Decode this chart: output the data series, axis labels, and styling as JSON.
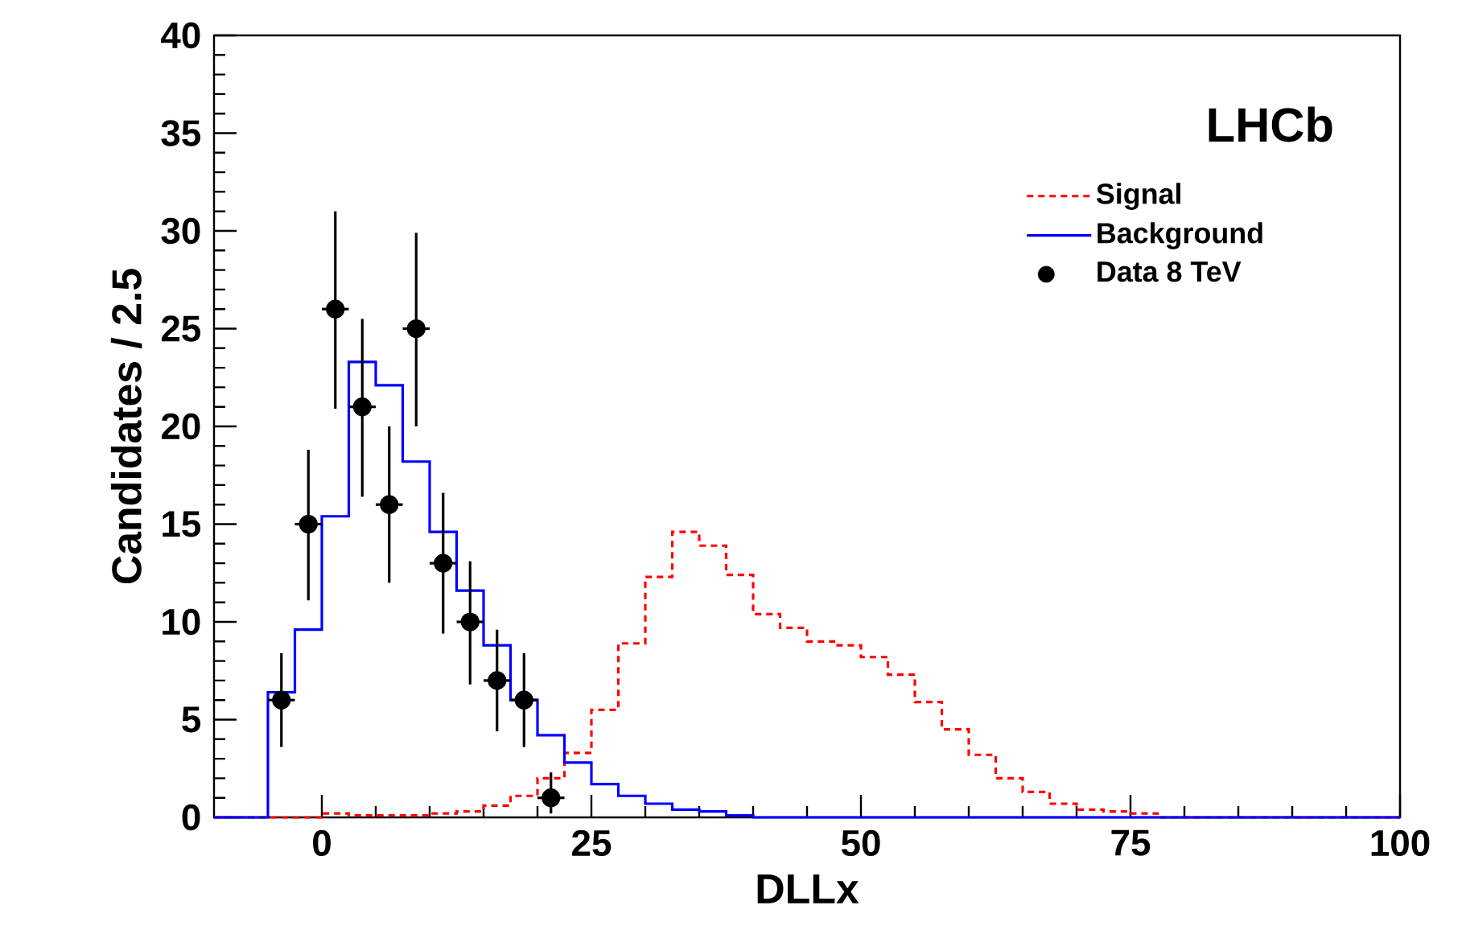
{
  "chart_data": {
    "type": "histogram",
    "xlabel": "DLLx",
    "ylabel": "Candidates / 2.5",
    "annotations": [
      "LHCb"
    ],
    "bins": [
      -10,
      -7.5,
      -5,
      -2.5,
      0,
      2.5,
      5,
      7.5,
      10,
      12.5,
      15,
      17.5,
      20,
      22.5,
      25,
      27.5,
      30,
      32.5,
      35,
      37.5,
      40,
      42.5,
      45,
      47.5,
      50,
      52.5,
      55,
      57.5,
      60,
      62.5,
      65,
      67.5,
      70,
      72.5,
      75,
      77.5,
      80,
      82.5,
      85,
      87.5,
      90,
      92.5,
      95,
      97.5,
      100
    ],
    "xlim": [
      -10,
      100
    ],
    "xticks": [
      0,
      25,
      50,
      75,
      100
    ],
    "ylim": [
      0,
      40
    ],
    "yticks": [
      0,
      5,
      10,
      15,
      20,
      25,
      30,
      35,
      40
    ],
    "legend": "top right",
    "series": [
      {
        "name": "Signal",
        "color": "#ff0000",
        "line_style": "dashed",
        "values": [
          0,
          0,
          0,
          0,
          0.2,
          0.1,
          0.1,
          0.1,
          0.2,
          0.3,
          0.6,
          1.1,
          2.0,
          3.3,
          5.5,
          8.9,
          12.3,
          14.6,
          13.9,
          12.4,
          10.4,
          9.7,
          9.0,
          8.8,
          8.2,
          7.3,
          5.9,
          4.5,
          3.2,
          2.0,
          1.3,
          0.7,
          0.4,
          0.3,
          0.2,
          0,
          0,
          0,
          0,
          0,
          0,
          0,
          0,
          0
        ]
      },
      {
        "name": "Background",
        "color": "#0000ff",
        "line_style": "solid",
        "values": [
          0,
          0,
          6.4,
          9.6,
          15.4,
          23.3,
          22.1,
          18.2,
          14.6,
          11.6,
          8.8,
          6.0,
          4.2,
          2.8,
          1.7,
          1.1,
          0.7,
          0.4,
          0.3,
          0.1,
          0,
          0,
          0,
          0,
          0,
          0,
          0,
          0,
          0,
          0,
          0,
          0,
          0,
          0,
          0,
          0,
          0,
          0,
          0,
          0,
          0,
          0,
          0,
          0
        ]
      },
      {
        "name": "Data 8 TeV",
        "type": "scatter",
        "color": "#000000",
        "marker": "circle",
        "x": [
          -3.75,
          -1.25,
          1.25,
          3.75,
          6.25,
          8.75,
          11.25,
          13.75,
          16.25,
          18.75,
          21.25
        ],
        "values": [
          6,
          15,
          26,
          21,
          16,
          25,
          13,
          10,
          7,
          6,
          1
        ],
        "errors": [
          [
            3.6,
            8.4
          ],
          [
            11.1,
            18.8
          ],
          [
            20.9,
            31.0
          ],
          [
            16.4,
            25.5
          ],
          [
            12.0,
            20.0
          ],
          [
            20.0,
            29.9
          ],
          [
            9.4,
            16.6
          ],
          [
            6.8,
            13.1
          ],
          [
            4.4,
            9.6
          ],
          [
            3.6,
            8.4
          ],
          [
            0.2,
            2.3
          ]
        ],
        "xerrors": [
          1.25,
          1.25,
          1.25,
          1.25,
          1.25,
          1.25,
          1.25,
          1.25,
          1.25,
          1.25,
          1.25
        ]
      }
    ]
  }
}
